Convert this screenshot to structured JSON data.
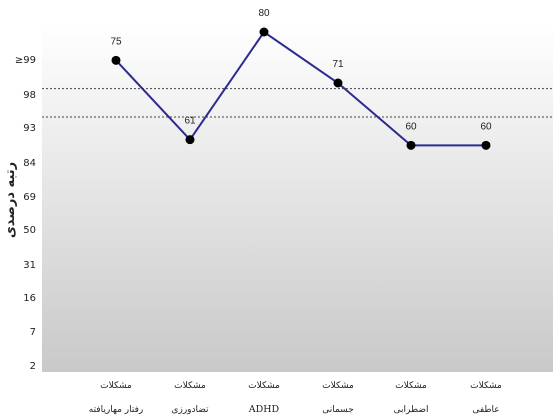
{
  "chart_data": {
    "type": "line",
    "ylabel": "رتبه درصدی",
    "yticks": [
      "≥99",
      "98",
      "93",
      "84",
      "69",
      "50",
      "31",
      "16",
      "7",
      "2"
    ],
    "categories": [
      {
        "line1": "مشکلات",
        "line2": "رفتار مهاریافته"
      },
      {
        "line1": "مشکلات",
        "line2": "تضادورزی"
      },
      {
        "line1": "مشکلات",
        "line2": "ADHD"
      },
      {
        "line1": "مشکلات",
        "line2": "جسمانی"
      },
      {
        "line1": "مشکلات",
        "line2": "اضطرابی"
      },
      {
        "line1": "مشکلات",
        "line2": "عاطفی"
      }
    ],
    "values": [
      75,
      61,
      80,
      71,
      60,
      60
    ],
    "data_labels": [
      "75",
      "61",
      "80",
      "71",
      "60",
      "60"
    ],
    "ylim": [
      20,
      80
    ],
    "reference_lines": [
      70,
      65
    ],
    "series_color": "#2b2b8f",
    "marker_color": "#000000",
    "grid": false
  }
}
